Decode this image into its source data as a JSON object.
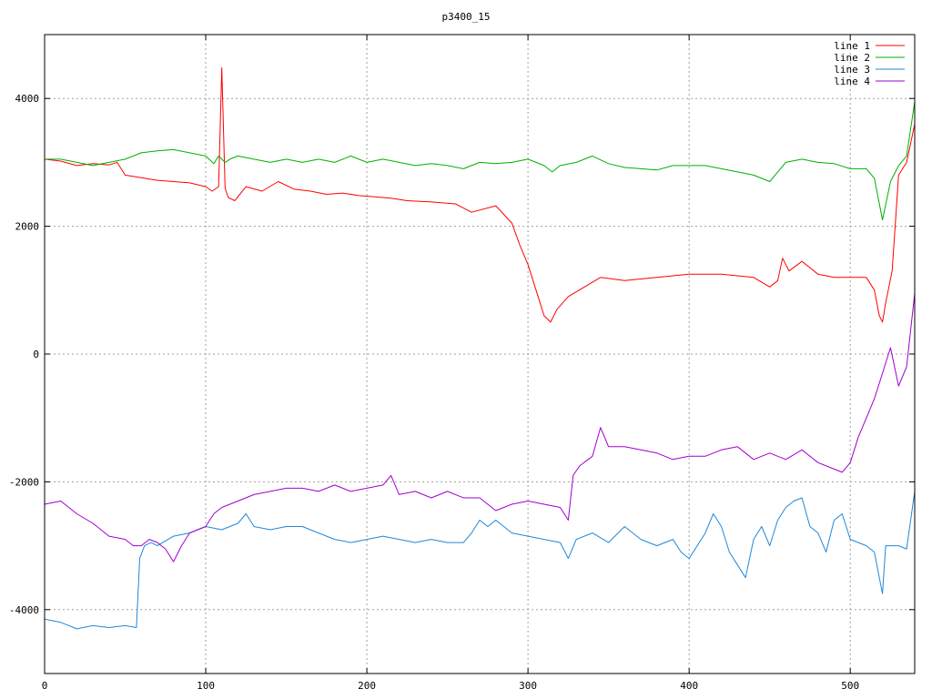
{
  "chart_data": {
    "type": "line",
    "title": "p3400_15",
    "xlabel": "",
    "ylabel": "",
    "xlim": [
      0,
      540
    ],
    "ylim": [
      -5000,
      5000
    ],
    "xticks": [
      0,
      100,
      200,
      300,
      400,
      500
    ],
    "yticks": [
      -4000,
      -2000,
      0,
      2000,
      4000
    ],
    "xtick_labels": [
      "0",
      "100",
      "200",
      "300",
      "400",
      "500"
    ],
    "ytick_labels": [
      "-4000",
      "-2000",
      "0",
      "2000",
      "4000"
    ],
    "grid": true,
    "legend_position": "top-right",
    "series": [
      {
        "name": "line 1",
        "color": "#ff0000",
        "x": [
          0,
          10,
          20,
          30,
          40,
          45,
          50,
          60,
          70,
          80,
          90,
          100,
          104,
          108,
          110,
          112,
          114,
          118,
          125,
          135,
          145,
          155,
          165,
          175,
          185,
          195,
          205,
          215,
          225,
          240,
          255,
          265,
          280,
          290,
          295,
          300,
          305,
          310,
          314,
          318,
          325,
          335,
          345,
          360,
          380,
          400,
          420,
          440,
          450,
          455,
          458,
          462,
          470,
          480,
          490,
          500,
          510,
          515,
          518,
          520,
          522,
          526,
          530,
          535,
          540
        ],
        "y": [
          3050,
          3020,
          2950,
          2980,
          2960,
          3000,
          2800,
          2760,
          2720,
          2700,
          2680,
          2620,
          2550,
          2620,
          4480,
          2600,
          2450,
          2400,
          2620,
          2550,
          2700,
          2580,
          2550,
          2500,
          2520,
          2480,
          2460,
          2440,
          2400,
          2380,
          2350,
          2220,
          2320,
          2050,
          1700,
          1400,
          1000,
          600,
          500,
          700,
          900,
          1050,
          1200,
          1150,
          1200,
          1250,
          1250,
          1200,
          1050,
          1150,
          1500,
          1300,
          1450,
          1250,
          1200,
          1200,
          1200,
          1000,
          600,
          500,
          800,
          1300,
          2800,
          3000,
          3600
        ]
      },
      {
        "name": "line 2",
        "color": "#00b000",
        "x": [
          0,
          10,
          20,
          30,
          40,
          50,
          60,
          70,
          80,
          90,
          100,
          105,
          108,
          110,
          112,
          115,
          120,
          130,
          140,
          150,
          160,
          170,
          180,
          190,
          200,
          210,
          220,
          230,
          240,
          250,
          260,
          270,
          280,
          290,
          300,
          310,
          315,
          320,
          330,
          340,
          350,
          360,
          370,
          380,
          390,
          400,
          410,
          420,
          430,
          440,
          450,
          455,
          460,
          470,
          480,
          490,
          500,
          510,
          515,
          520,
          525,
          530,
          535,
          540
        ],
        "y": [
          3050,
          3050,
          3000,
          2950,
          3000,
          3050,
          3150,
          3180,
          3200,
          3150,
          3100,
          2980,
          3100,
          3050,
          3000,
          3050,
          3100,
          3050,
          3000,
          3050,
          3000,
          3050,
          3000,
          3100,
          3000,
          3050,
          3000,
          2950,
          2980,
          2950,
          2900,
          3000,
          2980,
          3000,
          3050,
          2950,
          2850,
          2950,
          3000,
          3100,
          2980,
          2920,
          2900,
          2880,
          2950,
          2950,
          2950,
          2900,
          2850,
          2800,
          2700,
          2850,
          3000,
          3050,
          3000,
          2980,
          2900,
          2900,
          2750,
          2100,
          2700,
          2950,
          3100,
          3950
        ]
      },
      {
        "name": "line 3",
        "color": "#1f88d8",
        "x": [
          0,
          10,
          20,
          30,
          40,
          50,
          57,
          59,
          62,
          66,
          70,
          80,
          90,
          100,
          110,
          120,
          125,
          130,
          140,
          150,
          160,
          170,
          180,
          190,
          200,
          210,
          220,
          230,
          240,
          250,
          260,
          265,
          270,
          275,
          280,
          290,
          300,
          310,
          320,
          325,
          330,
          340,
          350,
          360,
          370,
          380,
          390,
          395,
          400,
          410,
          415,
          420,
          425,
          430,
          435,
          440,
          445,
          450,
          455,
          460,
          465,
          470,
          475,
          480,
          485,
          490,
          495,
          500,
          510,
          515,
          518,
          520,
          522,
          530,
          535,
          540
        ],
        "y": [
          -4150,
          -4200,
          -4300,
          -4250,
          -4280,
          -4250,
          -4280,
          -3200,
          -3000,
          -2950,
          -3000,
          -2850,
          -2800,
          -2700,
          -2750,
          -2650,
          -2500,
          -2700,
          -2750,
          -2700,
          -2700,
          -2800,
          -2900,
          -2950,
          -2900,
          -2850,
          -2900,
          -2950,
          -2900,
          -2950,
          -2950,
          -2800,
          -2600,
          -2700,
          -2600,
          -2800,
          -2850,
          -2900,
          -2950,
          -3200,
          -2900,
          -2800,
          -2950,
          -2700,
          -2900,
          -3000,
          -2900,
          -3100,
          -3200,
          -2800,
          -2500,
          -2700,
          -3100,
          -3300,
          -3500,
          -2900,
          -2700,
          -3000,
          -2600,
          -2400,
          -2300,
          -2250,
          -2700,
          -2800,
          -3100,
          -2600,
          -2500,
          -2900,
          -3000,
          -3100,
          -3500,
          -3750,
          -3000,
          -3000,
          -3050,
          -2150
        ]
      },
      {
        "name": "line 4",
        "color": "#a000d0",
        "x": [
          0,
          10,
          20,
          30,
          40,
          50,
          55,
          60,
          65,
          70,
          75,
          80,
          85,
          90,
          95,
          100,
          105,
          110,
          115,
          120,
          130,
          140,
          150,
          160,
          170,
          180,
          190,
          200,
          210,
          215,
          220,
          230,
          240,
          250,
          260,
          270,
          280,
          290,
          300,
          310,
          320,
          325,
          328,
          332,
          340,
          345,
          350,
          360,
          370,
          380,
          390,
          400,
          410,
          420,
          430,
          440,
          450,
          460,
          470,
          480,
          490,
          495,
          500,
          505,
          510,
          515,
          520,
          525,
          530,
          535,
          540
        ],
        "y": [
          -2350,
          -2300,
          -2500,
          -2650,
          -2850,
          -2900,
          -3000,
          -3000,
          -2900,
          -2950,
          -3050,
          -3250,
          -3000,
          -2800,
          -2750,
          -2700,
          -2500,
          -2400,
          -2350,
          -2300,
          -2200,
          -2150,
          -2100,
          -2100,
          -2150,
          -2050,
          -2150,
          -2100,
          -2050,
          -1900,
          -2200,
          -2150,
          -2250,
          -2150,
          -2250,
          -2250,
          -2450,
          -2350,
          -2300,
          -2350,
          -2400,
          -2600,
          -1900,
          -1750,
          -1600,
          -1150,
          -1450,
          -1450,
          -1500,
          -1550,
          -1650,
          -1600,
          -1600,
          -1500,
          -1450,
          -1650,
          -1550,
          -1650,
          -1500,
          -1700,
          -1800,
          -1850,
          -1700,
          -1300,
          -1000,
          -700,
          -300,
          100,
          -500,
          -200,
          950
        ]
      }
    ]
  }
}
